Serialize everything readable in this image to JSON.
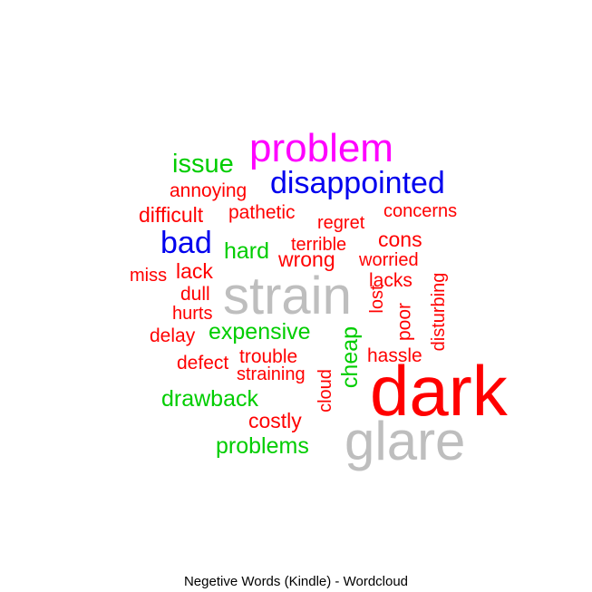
{
  "chart_data": {
    "type": "wordcloud",
    "title": "Negetive Words (Kindle) - Wordcloud",
    "palette": {
      "tier1": "#ff0000",
      "tier2": "#00cd00",
      "tier3": "#0000ee",
      "tier4": "#ff00ff",
      "tier5": "#bebebe",
      "tier6": "#ff0000"
    },
    "words": [
      {
        "text": "dark",
        "tier": 6
      },
      {
        "text": "glare",
        "tier": 5
      },
      {
        "text": "strain",
        "tier": 5
      },
      {
        "text": "problem",
        "tier": 4
      },
      {
        "text": "disappointed",
        "tier": 3
      },
      {
        "text": "bad",
        "tier": 3
      },
      {
        "text": "issue",
        "tier": 2
      },
      {
        "text": "hard",
        "tier": 2
      },
      {
        "text": "expensive",
        "tier": 2
      },
      {
        "text": "cheap",
        "tier": 2,
        "rotate": true
      },
      {
        "text": "drawback",
        "tier": 2
      },
      {
        "text": "problems",
        "tier": 2
      },
      {
        "text": "annoying",
        "tier": 1
      },
      {
        "text": "difficult",
        "tier": 1
      },
      {
        "text": "pathetic",
        "tier": 1
      },
      {
        "text": "regret",
        "tier": 1
      },
      {
        "text": "concerns",
        "tier": 1
      },
      {
        "text": "cons",
        "tier": 1
      },
      {
        "text": "terrible",
        "tier": 1
      },
      {
        "text": "wrong",
        "tier": 1
      },
      {
        "text": "worried",
        "tier": 1
      },
      {
        "text": "miss",
        "tier": 1
      },
      {
        "text": "lack",
        "tier": 1
      },
      {
        "text": "lacks",
        "tier": 1
      },
      {
        "text": "dull",
        "tier": 1
      },
      {
        "text": "hurts",
        "tier": 1
      },
      {
        "text": "lost",
        "tier": 1,
        "rotate": true
      },
      {
        "text": "poor",
        "tier": 1,
        "rotate": true
      },
      {
        "text": "disturbing",
        "tier": 1,
        "rotate": true
      },
      {
        "text": "delay",
        "tier": 1
      },
      {
        "text": "trouble",
        "tier": 1
      },
      {
        "text": "hassle",
        "tier": 1
      },
      {
        "text": "defect",
        "tier": 1
      },
      {
        "text": "straining",
        "tier": 1
      },
      {
        "text": "cloud",
        "tier": 1,
        "rotate": true
      },
      {
        "text": "costly",
        "tier": 1
      }
    ]
  }
}
